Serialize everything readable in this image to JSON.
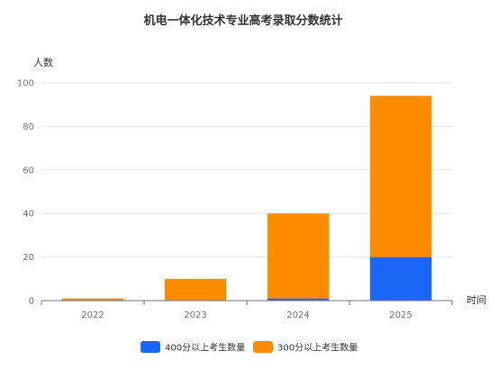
{
  "chart_data": {
    "type": "bar",
    "stacked": true,
    "title": "机电一体化技术专业高考录取分数统计",
    "xlabel": "时间",
    "ylabel": "人数",
    "categories": [
      "2022",
      "2023",
      "2024",
      "2025"
    ],
    "series": [
      {
        "name": "400分以上考生数量",
        "values": [
          0,
          0,
          1,
          20
        ],
        "color": "#1b66f5"
      },
      {
        "name": "300分以上考生数量",
        "values": [
          1,
          10,
          39,
          74
        ],
        "color": "#ff8c00"
      }
    ],
    "ylim": [
      0,
      100
    ],
    "yticks": [
      0,
      20,
      40,
      60,
      80,
      100
    ],
    "grid": true,
    "legend_position": "bottom-center"
  }
}
